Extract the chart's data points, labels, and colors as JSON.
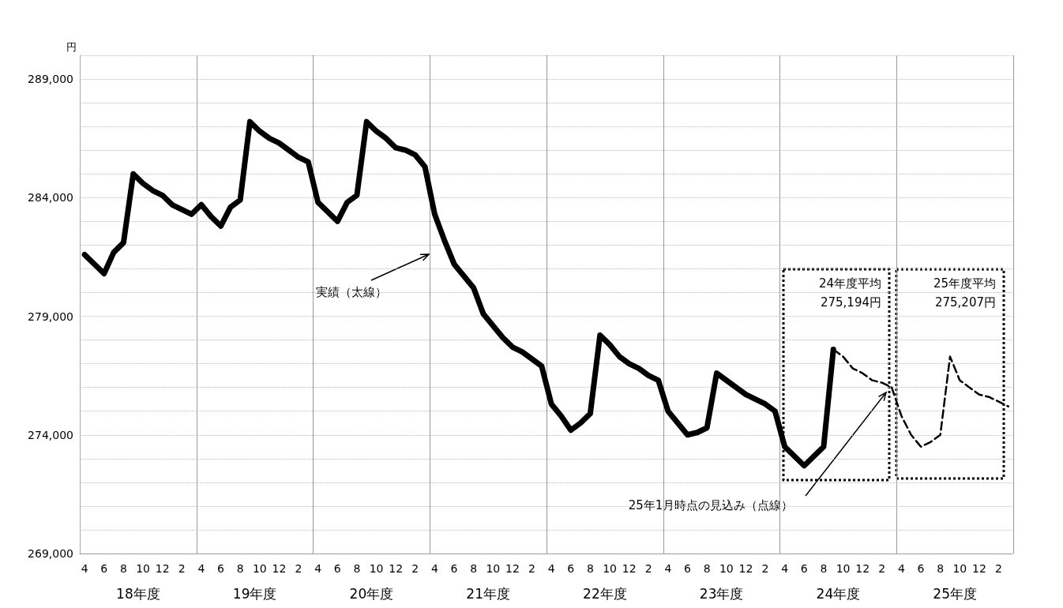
{
  "chart_data": {
    "type": "line",
    "ylabel": "円",
    "categories": [
      "4",
      null,
      "6",
      null,
      "8",
      null,
      "10",
      null,
      "12",
      null,
      "2",
      null,
      "4",
      null,
      "6",
      null,
      "8",
      null,
      "10",
      null,
      "12",
      null,
      "2",
      null,
      "4",
      null,
      "6",
      null,
      "8",
      null,
      "10",
      null,
      "12",
      null,
      "2",
      null,
      "4",
      null,
      "6",
      null,
      "8",
      null,
      "10",
      null,
      "12",
      null,
      "2",
      null,
      "4",
      null,
      "6",
      null,
      "8",
      null,
      "10",
      null,
      "12",
      null,
      "2",
      null,
      "4",
      null,
      "6",
      null,
      "8",
      null,
      "10",
      null,
      "12",
      null,
      "2",
      null,
      "4",
      null,
      "6",
      null,
      "8",
      null,
      "10",
      null,
      "12",
      null,
      "2",
      null,
      "4",
      null,
      "6",
      null,
      "8",
      null,
      "10",
      null,
      "12",
      null,
      "2",
      null
    ],
    "series": [
      {
        "color": "#000000",
        "line_style": "solid",
        "values": [
          281600,
          281200,
          280800,
          281700,
          282100,
          285000,
          284600,
          284300,
          284100,
          283700,
          283500,
          283300,
          283700,
          283200,
          282800,
          283600,
          283900,
          287200,
          286800,
          286500,
          286300,
          286000,
          285700,
          285500,
          283800,
          283400,
          283000,
          283800,
          284100,
          287200,
          286800,
          286500,
          286100,
          286000,
          285800,
          285300,
          283300,
          282200,
          281200,
          280700,
          280200,
          279100,
          278600,
          278100,
          277700,
          277500,
          277200,
          276900,
          275300,
          274800,
          274200,
          274500,
          274900,
          278200,
          277800,
          277300,
          277000,
          276800,
          276500,
          276300,
          275000,
          274500,
          274000,
          274100,
          274300,
          276600,
          276300,
          276000,
          275700,
          275500,
          275300,
          275000,
          273500,
          273100,
          272700,
          273100,
          273500,
          277600,
          null,
          null,
          null,
          null,
          null,
          null,
          null,
          null,
          null,
          null,
          null,
          null,
          null,
          null,
          null,
          null,
          null,
          null
        ]
      },
      {
        "color": "#000000",
        "line_style": "dashed",
        "values": [
          null,
          null,
          null,
          null,
          null,
          null,
          null,
          null,
          null,
          null,
          null,
          null,
          null,
          null,
          null,
          null,
          null,
          null,
          null,
          null,
          null,
          null,
          null,
          null,
          null,
          null,
          null,
          null,
          null,
          null,
          null,
          null,
          null,
          null,
          null,
          null,
          null,
          null,
          null,
          null,
          null,
          null,
          null,
          null,
          null,
          null,
          null,
          null,
          null,
          null,
          null,
          null,
          null,
          null,
          null,
          null,
          null,
          null,
          null,
          null,
          null,
          null,
          null,
          null,
          null,
          null,
          null,
          null,
          null,
          null,
          null,
          null,
          null,
          null,
          null,
          null,
          null,
          277600,
          277300,
          276800,
          276600,
          276300,
          276200,
          276000,
          274800,
          274000,
          273500,
          273700,
          274000,
          277300,
          276300,
          276000,
          275700,
          275600,
          275400,
          275200
        ]
      }
    ],
    "ylim": [
      269000,
      290000
    ],
    "yticks": [
      {
        "value": 269000,
        "label": "269,000"
      },
      {
        "value": 270000,
        "label": null
      },
      {
        "value": 271000,
        "label": null
      },
      {
        "value": 272000,
        "label": null
      },
      {
        "value": 273000,
        "label": null
      },
      {
        "value": 274000,
        "label": "274,000"
      },
      {
        "value": 275000,
        "label": null
      },
      {
        "value": 276000,
        "label": null
      },
      {
        "value": 277000,
        "label": null
      },
      {
        "value": 278000,
        "label": null
      },
      {
        "value": 279000,
        "label": "279,000"
      },
      {
        "value": 280000,
        "label": null
      },
      {
        "value": 281000,
        "label": null
      },
      {
        "value": 282000,
        "label": null
      },
      {
        "value": 283000,
        "label": null
      },
      {
        "value": 284000,
        "label": "284,000"
      },
      {
        "value": 285000,
        "label": null
      },
      {
        "value": 286000,
        "label": null
      },
      {
        "value": 287000,
        "label": null
      },
      {
        "value": 288000,
        "label": null
      },
      {
        "value": 289000,
        "label": "289,000"
      },
      {
        "value": 290000,
        "label": null
      }
    ],
    "grid": true,
    "marker": "none",
    "annotations": [
      "実績（太線）",
      "25年1月時点の見込み（点線）",
      "24年度平均\n275,194円",
      "25年度平均\n275,207円",
      "18年度",
      "19年度",
      "20年度",
      "21年度",
      "22年度",
      "23年度",
      "24年度",
      "25年度"
    ]
  }
}
